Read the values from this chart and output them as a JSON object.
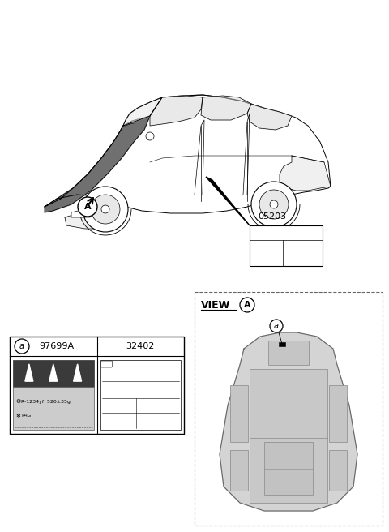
{
  "bg_color": "#ffffff",
  "car_label": "A",
  "part_number": "05203",
  "view_label": "VIEW",
  "view_circle": "A",
  "balloon_a": "a",
  "col1_header": "97699A",
  "col2_header": "32402",
  "label_r": "R-1234yf  520±35g",
  "label_pag": "PAG",
  "fig_size": [
    4.8,
    6.56
  ],
  "dpi": 100
}
